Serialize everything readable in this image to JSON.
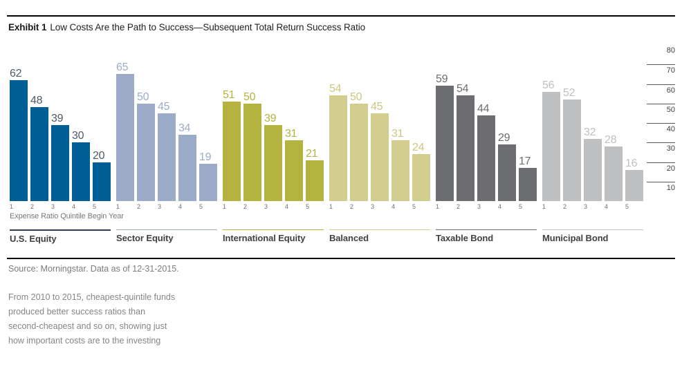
{
  "header": {
    "exhibit_label": "Exhibit 1",
    "title": "Low Costs Are the Path to Success—Subsequent Total Return Success Ratio"
  },
  "chart_data": {
    "type": "bar",
    "title": "Subsequent Total Return Success Ratio",
    "xlabel": "Expense Ratio Quintile Begin Year",
    "ylabel": "",
    "ylim": [
      0,
      80
    ],
    "yticks": [
      80,
      70,
      60,
      50,
      40,
      30,
      20,
      10
    ],
    "legend_position": "none",
    "grid": "right-axis-ticks-only",
    "quintile_labels": [
      "1",
      "2",
      "3",
      "4",
      "5"
    ],
    "groups": [
      {
        "name": "U.S. Equity",
        "values": [
          62,
          48,
          39,
          30,
          20
        ],
        "bar_color": "#005E96",
        "label_color": "#4E5A66",
        "line_color": "#2B3B49"
      },
      {
        "name": "Sector Equity",
        "values": [
          65,
          50,
          45,
          34,
          19
        ],
        "bar_color": "#9CACC8",
        "label_color": "#9CACC8",
        "line_color": "#9CACC8"
      },
      {
        "name": "International Equity",
        "values": [
          51,
          50,
          39,
          31,
          21
        ],
        "bar_color": "#B4B33F",
        "label_color": "#B4B33F",
        "line_color": "#B4B33F"
      },
      {
        "name": "Balanced",
        "values": [
          54,
          50,
          45,
          31,
          24
        ],
        "bar_color": "#D2CC8E",
        "label_color": "#CCC581",
        "line_color": "#D2CC8E"
      },
      {
        "name": "Taxable Bond",
        "values": [
          59,
          54,
          44,
          29,
          17
        ],
        "bar_color": "#6C6D70",
        "label_color": "#6C6D70",
        "line_color": "#6C6D70"
      },
      {
        "name": "Municipal Bond",
        "values": [
          56,
          52,
          32,
          28,
          16
        ],
        "bar_color": "#BEBFC1",
        "label_color": "#BEBFC1",
        "line_color": "#BEBFC1"
      }
    ]
  },
  "footer": {
    "source": "Source: Morningstar. Data as of 12-31-2015.",
    "note_lines": [
      "From 2010 to 2015, cheapest-quintile funds",
      "produced better success ratios than",
      "second-cheapest and so on, showing just",
      "how important costs are to the investing"
    ]
  }
}
